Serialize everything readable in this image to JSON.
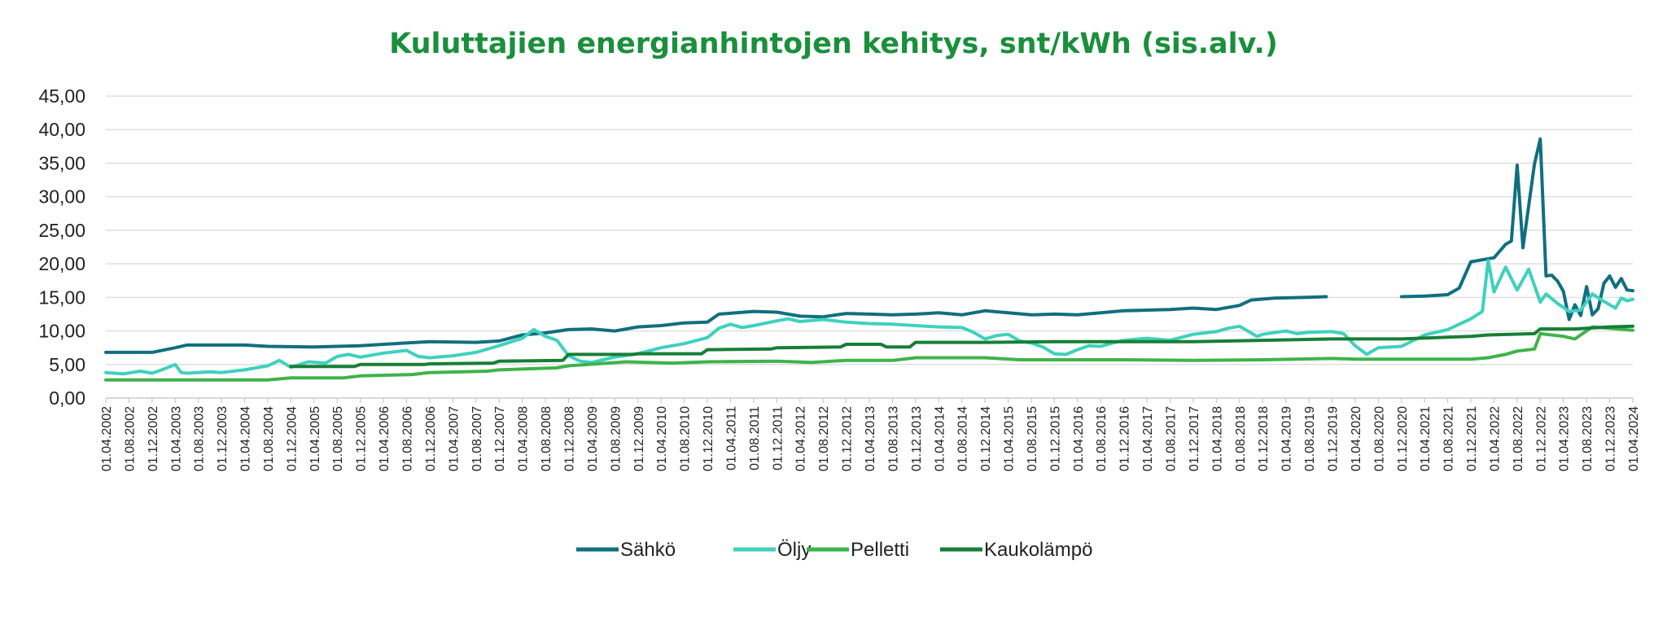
{
  "chart_data": {
    "type": "line",
    "title": "Kuluttajien energianhintojen kehitys, snt/kWh (sis.alv.)",
    "xlabel": "",
    "ylabel": "",
    "ylim": [
      0,
      45
    ],
    "y_ticks": [
      "0,00",
      "5,00",
      "10,00",
      "15,00",
      "20,00",
      "25,00",
      "30,00",
      "35,00",
      "40,00",
      "45,00"
    ],
    "x_tick_labels": [
      "01.04.2002",
      "01.08.2002",
      "01.12.2002",
      "01.04.2003",
      "01.08.2003",
      "01.12.2003",
      "01.04.2004",
      "01.08.2004",
      "01.12.2004",
      "01.04.2005",
      "01.08.2005",
      "01.12.2005",
      "01.04.2006",
      "01.08.2006",
      "01.12.2006",
      "01.04.2007",
      "01.08.2007",
      "01.12.2007",
      "01.04.2008",
      "01.08.2008",
      "01.12.2008",
      "01.04.2009",
      "01.08.2009",
      "01.12.2009",
      "01.04.2010",
      "01.08.2010",
      "01.12.2010",
      "01.04.2011",
      "01.08.2011",
      "01.12.2011",
      "01.04.2012",
      "01.08.2012",
      "01.12.2012",
      "01.04.2013",
      "01.08.2013",
      "01.12.2013",
      "01.04.2014",
      "01.08.2014",
      "01.12.2014",
      "01.04.2015",
      "01.08.2015",
      "01.12.2015",
      "01.04.2016",
      "01.08.2016",
      "01.12.2016",
      "01.04.2017",
      "01.08.2017",
      "01.12.2017",
      "01.04.2018",
      "01.08.2018",
      "01.12.2018",
      "01.04.2019",
      "01.08.2019",
      "01.12.2019",
      "01.04.2020",
      "01.08.2020",
      "01.12.2020",
      "01.04.2021",
      "01.08.2021",
      "01.12.2021",
      "01.04.2022",
      "01.08.2022",
      "01.12.2022",
      "01.04.2023",
      "01.08.2023",
      "01.12.2023",
      "01.04.2024"
    ],
    "grid": true,
    "legend_position": "bottom",
    "series": [
      {
        "name": "Sähkö",
        "color": "#106f7f",
        "points": [
          [
            "01.04.2002",
            6.8
          ],
          [
            "01.12.2002",
            6.8
          ],
          [
            "01.04.2003",
            7.5
          ],
          [
            "01.06.2003",
            7.9
          ],
          [
            "01.04.2004",
            7.9
          ],
          [
            "01.08.2004",
            7.7
          ],
          [
            "01.04.2005",
            7.6
          ],
          [
            "01.12.2005",
            7.8
          ],
          [
            "01.04.2006",
            8.0
          ],
          [
            "01.12.2006",
            8.4
          ],
          [
            "01.08.2007",
            8.3
          ],
          [
            "01.12.2007",
            8.5
          ],
          [
            "01.04.2008",
            9.4
          ],
          [
            "01.08.2008",
            9.7
          ],
          [
            "01.12.2008",
            10.2
          ],
          [
            "01.04.2009",
            10.3
          ],
          [
            "01.08.2009",
            10.0
          ],
          [
            "01.12.2009",
            10.6
          ],
          [
            "01.04.2010",
            10.8
          ],
          [
            "01.08.2010",
            11.2
          ],
          [
            "01.12.2010",
            11.3
          ],
          [
            "01.02.2011",
            12.5
          ],
          [
            "01.08.2011",
            12.9
          ],
          [
            "01.12.2011",
            12.8
          ],
          [
            "01.04.2012",
            12.2
          ],
          [
            "01.08.2012",
            12.1
          ],
          [
            "01.12.2012",
            12.6
          ],
          [
            "01.04.2013",
            12.5
          ],
          [
            "01.08.2013",
            12.4
          ],
          [
            "01.12.2013",
            12.5
          ],
          [
            "01.04.2014",
            12.7
          ],
          [
            "01.08.2014",
            12.4
          ],
          [
            "01.12.2014",
            13.0
          ],
          [
            "01.04.2015",
            12.7
          ],
          [
            "01.08.2015",
            12.4
          ],
          [
            "01.12.2015",
            12.5
          ],
          [
            "01.04.2016",
            12.4
          ],
          [
            "01.08.2016",
            12.7
          ],
          [
            "01.12.2016",
            13.0
          ],
          [
            "01.04.2017",
            13.1
          ],
          [
            "01.08.2017",
            13.2
          ],
          [
            "01.12.2017",
            13.4
          ],
          [
            "01.04.2018",
            13.2
          ],
          [
            "01.08.2018",
            13.8
          ],
          [
            "01.10.2018",
            14.6
          ],
          [
            "01.02.2019",
            14.9
          ],
          [
            "01.08.2019",
            15.0
          ],
          [
            "01.11.2019",
            15.1
          ],
          null,
          [
            "01.12.2020",
            15.1
          ],
          [
            "01.04.2021",
            15.2
          ],
          [
            "01.08.2021",
            15.4
          ],
          [
            "01.10.2021",
            16.4
          ],
          [
            "01.12.2021",
            20.3
          ],
          [
            "01.04.2022",
            20.9
          ],
          [
            "01.06.2022",
            22.9
          ],
          [
            "01.07.2022",
            23.4
          ],
          [
            "01.08.2022",
            34.7
          ],
          [
            "01.09.2022",
            22.4
          ],
          [
            "01.11.2022",
            34.9
          ],
          [
            "01.12.2022",
            38.6
          ],
          [
            "01.01.2023",
            18.2
          ],
          [
            "01.02.2023",
            18.3
          ],
          [
            "01.03.2023",
            17.4
          ],
          [
            "01.04.2023",
            15.9
          ],
          [
            "01.05.2023",
            11.7
          ],
          [
            "01.06.2023",
            13.9
          ],
          [
            "01.07.2023",
            12.3
          ],
          [
            "01.08.2023",
            16.6
          ],
          [
            "01.09.2023",
            12.4
          ],
          [
            "01.10.2023",
            13.3
          ],
          [
            "01.11.2023",
            17.1
          ],
          [
            "01.12.2023",
            18.2
          ],
          [
            "01.01.2024",
            16.5
          ],
          [
            "01.02.2024",
            17.8
          ],
          [
            "01.03.2024",
            16.1
          ],
          [
            "01.04.2024",
            16.0
          ]
        ]
      },
      {
        "name": "Öljy",
        "color": "#3fd1bd",
        "points": [
          [
            "01.04.2002",
            3.8
          ],
          [
            "01.07.2002",
            3.6
          ],
          [
            "01.10.2002",
            4.0
          ],
          [
            "01.12.2002",
            3.7
          ],
          [
            "01.02.2003",
            4.3
          ],
          [
            "01.04.2003",
            5.0
          ],
          [
            "01.05.2003",
            3.8
          ],
          [
            "01.06.2003",
            3.7
          ],
          [
            "01.10.2003",
            3.9
          ],
          [
            "01.12.2003",
            3.8
          ],
          [
            "01.04.2004",
            4.2
          ],
          [
            "01.08.2004",
            4.8
          ],
          [
            "01.10.2004",
            5.6
          ],
          [
            "01.12.2004",
            4.6
          ],
          [
            "01.03.2005",
            5.4
          ],
          [
            "01.06.2005",
            5.2
          ],
          [
            "01.08.2005",
            6.2
          ],
          [
            "01.10.2005",
            6.5
          ],
          [
            "01.12.2005",
            6.1
          ],
          [
            "01.04.2006",
            6.7
          ],
          [
            "01.08.2006",
            7.1
          ],
          [
            "01.10.2006",
            6.2
          ],
          [
            "01.12.2006",
            6.0
          ],
          [
            "01.04.2007",
            6.3
          ],
          [
            "01.08.2007",
            6.8
          ],
          [
            "01.12.2007",
            7.8
          ],
          [
            "01.04.2008",
            8.9
          ],
          [
            "01.06.2008",
            10.2
          ],
          [
            "01.08.2008",
            9.2
          ],
          [
            "01.10.2008",
            8.6
          ],
          [
            "01.12.2008",
            6.3
          ],
          [
            "01.02.2009",
            5.5
          ],
          [
            "01.04.2009",
            5.3
          ],
          [
            "01.08.2009",
            6.1
          ],
          [
            "01.12.2009",
            6.6
          ],
          [
            "01.04.2010",
            7.5
          ],
          [
            "01.08.2010",
            8.1
          ],
          [
            "01.12.2010",
            9.0
          ],
          [
            "01.02.2011",
            10.4
          ],
          [
            "01.04.2011",
            11.0
          ],
          [
            "01.06.2011",
            10.5
          ],
          [
            "01.08.2011",
            10.8
          ],
          [
            "01.12.2011",
            11.5
          ],
          [
            "01.02.2012",
            11.8
          ],
          [
            "01.04.2012",
            11.4
          ],
          [
            "01.08.2012",
            11.7
          ],
          [
            "01.12.2012",
            11.3
          ],
          [
            "01.04.2013",
            11.1
          ],
          [
            "01.08.2013",
            11.0
          ],
          [
            "01.12.2013",
            10.8
          ],
          [
            "01.04.2014",
            10.6
          ],
          [
            "01.08.2014",
            10.5
          ],
          [
            "01.10.2014",
            9.8
          ],
          [
            "01.12.2014",
            8.8
          ],
          [
            "01.02.2015",
            9.3
          ],
          [
            "01.04.2015",
            9.5
          ],
          [
            "01.06.2015",
            8.5
          ],
          [
            "01.08.2015",
            8.2
          ],
          [
            "01.10.2015",
            7.6
          ],
          [
            "01.12.2015",
            6.6
          ],
          [
            "01.02.2016",
            6.5
          ],
          [
            "01.04.2016",
            7.2
          ],
          [
            "01.06.2016",
            7.8
          ],
          [
            "01.08.2016",
            7.7
          ],
          [
            "01.10.2016",
            8.2
          ],
          [
            "01.12.2016",
            8.6
          ],
          [
            "01.04.2017",
            8.9
          ],
          [
            "01.08.2017",
            8.6
          ],
          [
            "01.12.2017",
            9.5
          ],
          [
            "01.04.2018",
            9.9
          ],
          [
            "01.06.2018",
            10.4
          ],
          [
            "01.08.2018",
            10.7
          ],
          [
            "01.09.2018",
            10.2
          ],
          [
            "01.11.2018",
            9.2
          ],
          [
            "01.12.2018",
            9.5
          ],
          [
            "01.04.2019",
            10.0
          ],
          [
            "01.06.2019",
            9.6
          ],
          [
            "01.08.2019",
            9.8
          ],
          [
            "01.12.2019",
            9.9
          ],
          [
            "01.02.2020",
            9.6
          ],
          [
            "01.04.2020",
            7.8
          ],
          [
            "01.06.2020",
            6.5
          ],
          [
            "01.08.2020",
            7.5
          ],
          [
            "01.12.2020",
            7.7
          ],
          [
            "01.04.2021",
            9.4
          ],
          [
            "01.08.2021",
            10.2
          ],
          [
            "01.12.2021",
            11.8
          ],
          [
            "01.02.2022",
            12.9
          ],
          [
            "01.03.2022",
            20.5
          ],
          [
            "01.04.2022",
            15.8
          ],
          [
            "01.06.2022",
            19.5
          ],
          [
            "01.08.2022",
            16.1
          ],
          [
            "01.10.2022",
            19.2
          ],
          [
            "01.12.2022",
            14.3
          ],
          [
            "01.01.2023",
            15.5
          ],
          [
            "01.03.2023",
            14.1
          ],
          [
            "01.05.2023",
            12.9
          ],
          [
            "01.07.2023",
            13.1
          ],
          [
            "01.09.2023",
            15.5
          ],
          [
            "01.11.2023",
            14.4
          ],
          [
            "01.01.2024",
            13.4
          ],
          [
            "01.02.2024",
            14.9
          ],
          [
            "01.03.2024",
            14.5
          ],
          [
            "01.04.2024",
            14.7
          ]
        ]
      },
      {
        "name": "Pelletti",
        "color": "#3fb34a",
        "points": [
          [
            "01.04.2002",
            2.7
          ],
          [
            "01.08.2004",
            2.7
          ],
          [
            "01.12.2004",
            3.0
          ],
          [
            "01.09.2005",
            3.0
          ],
          [
            "01.12.2005",
            3.3
          ],
          [
            "01.09.2006",
            3.5
          ],
          [
            "01.12.2006",
            3.8
          ],
          [
            "01.10.2007",
            4.0
          ],
          [
            "01.12.2007",
            4.2
          ],
          [
            "01.10.2008",
            4.5
          ],
          [
            "01.12.2008",
            4.8
          ],
          [
            "01.10.2009",
            5.4
          ],
          [
            "01.06.2010",
            5.2
          ],
          [
            "01.12.2010",
            5.4
          ],
          [
            "01.12.2011",
            5.5
          ],
          [
            "01.06.2012",
            5.3
          ],
          [
            "01.12.2012",
            5.6
          ],
          [
            "01.08.2013",
            5.6
          ],
          [
            "01.12.2013",
            6.0
          ],
          [
            "01.12.2014",
            6.0
          ],
          [
            "01.06.2015",
            5.7
          ],
          [
            "01.12.2016",
            5.7
          ],
          [
            "01.12.2017",
            5.6
          ],
          [
            "01.12.2018",
            5.7
          ],
          [
            "01.12.2019",
            5.9
          ],
          [
            "01.04.2020",
            5.8
          ],
          [
            "01.12.2021",
            5.8
          ],
          [
            "01.03.2022",
            6.0
          ],
          [
            "01.06.2022",
            6.5
          ],
          [
            "01.08.2022",
            7.0
          ],
          [
            "01.11.2022",
            7.3
          ],
          [
            "01.12.2022",
            9.6
          ],
          [
            "01.04.2023",
            9.2
          ],
          [
            "01.06.2023",
            8.8
          ],
          [
            "01.09.2023",
            10.6
          ],
          [
            "01.12.2023",
            10.4
          ],
          [
            "01.04.2024",
            10.1
          ]
        ]
      },
      {
        "name": "Kaukolämpö",
        "color": "#167f36",
        "points": [
          [
            "01.12.2004",
            4.7
          ],
          [
            "01.11.2005",
            4.7
          ],
          [
            "01.12.2005",
            5.0
          ],
          [
            "01.11.2006",
            5.0
          ],
          [
            "01.12.2006",
            5.1
          ],
          [
            "01.11.2007",
            5.2
          ],
          [
            "01.12.2007",
            5.5
          ],
          [
            "01.11.2008",
            5.6
          ],
          [
            "01.12.2008",
            6.5
          ],
          [
            "01.11.2009",
            6.5
          ],
          [
            "01.12.2009",
            6.6
          ],
          [
            "01.11.2010",
            6.6
          ],
          [
            "01.12.2010",
            7.2
          ],
          [
            "01.11.2011",
            7.3
          ],
          [
            "01.12.2011",
            7.5
          ],
          [
            "01.11.2012",
            7.6
          ],
          [
            "01.12.2012",
            8.0
          ],
          [
            "01.06.2013",
            8.0
          ],
          [
            "01.07.2013",
            7.6
          ],
          [
            "01.11.2013",
            7.6
          ],
          [
            "01.12.2013",
            8.3
          ],
          [
            "01.12.2014",
            8.3
          ],
          [
            "01.12.2015",
            8.4
          ],
          [
            "01.12.2017",
            8.4
          ],
          [
            "01.12.2018",
            8.6
          ],
          [
            "01.12.2019",
            8.8
          ],
          [
            "01.12.2020",
            8.8
          ],
          [
            "01.12.2021",
            9.2
          ],
          [
            "01.03.2022",
            9.4
          ],
          [
            "01.11.2022",
            9.6
          ],
          [
            "01.12.2022",
            10.3
          ],
          [
            "01.06.2023",
            10.3
          ],
          [
            "01.12.2023",
            10.6
          ],
          [
            "01.04.2024",
            10.7
          ]
        ]
      }
    ]
  }
}
